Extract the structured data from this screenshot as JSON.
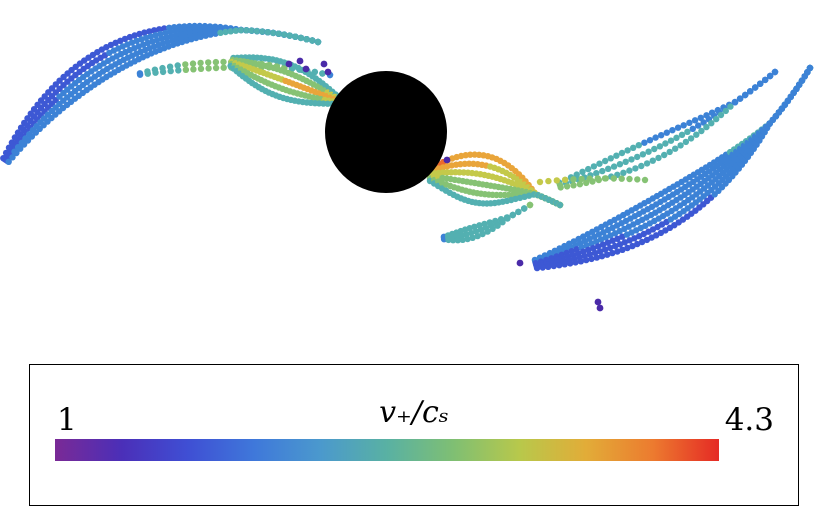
{
  "figure": {
    "background": "#ffffff",
    "central_body_color": "#000000",
    "stream_colors": [
      "#4a2aa8",
      "#3d58d4",
      "#3c82d6",
      "#53b0b1",
      "#86c274",
      "#c4c94a",
      "#e9a53a",
      "#ea6a2d"
    ]
  },
  "legend": {
    "min_label": "1",
    "max_label": "4.3",
    "title": "v₊/cₛ",
    "colormap": [
      "#7a2a96",
      "#4b2fb8",
      "#3f4fd4",
      "#3f78da",
      "#4b99cd",
      "#59b1a3",
      "#7fbf73",
      "#b8c84b",
      "#e2ac38",
      "#ec7b2f",
      "#e52a25"
    ]
  }
}
